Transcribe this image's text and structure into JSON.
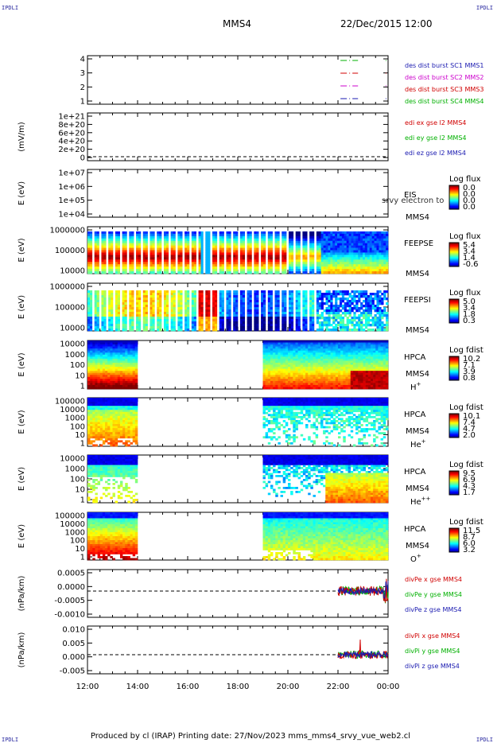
{
  "corner_label": "IPDLI",
  "title_left": "MMS4",
  "title_right": "22/Dec/2015 12:00",
  "footer": "Produced by cl (IRAP)   Printing date: 27/Nov/2023   mms_mms4_srvy_vue_web2.cl",
  "x_ticks": [
    "12:00",
    "14:00",
    "16:00",
    "18:00",
    "20:00",
    "22:00",
    "00:00"
  ],
  "panels": {
    "p1": {
      "ylabel": "",
      "yticks": [
        "4",
        "3",
        "2",
        "1"
      ],
      "legend": [
        {
          "text": "des dist burst SC1 MMS1",
          "color": "#1a1ab0"
        },
        {
          "text": "des dist burst SC2 MMS2",
          "color": "#cc00cc"
        },
        {
          "text": "des dist burst SC3 MMS3",
          "color": "#d00000"
        },
        {
          "text": "des dist burst SC4 MMS4",
          "color": "#00b000"
        }
      ]
    },
    "p2": {
      "ylabel": "(mV/m)",
      "yticks": [
        "1e+21",
        "8e+20",
        "6e+20",
        "4e+20",
        "2e+20",
        "0"
      ],
      "legend": [
        {
          "text": "edi ex gse l2 MMS4",
          "color": "#d00000"
        },
        {
          "text": "edi ey gse l2 MMS4",
          "color": "#00b000"
        },
        {
          "text": "edi ez gse l2 MMS4",
          "color": "#1a1ab0"
        }
      ]
    },
    "p3": {
      "ylabel": "E (eV)",
      "yticks": [
        "1e+07",
        "1e+06",
        "1e+05",
        "1e+04"
      ],
      "label1": "EIS",
      "label2": "MMS4",
      "overlay": "srvy electron to",
      "cb_title": "Log flux",
      "cb_ticks": [
        "0.0",
        "0.0",
        "0.0",
        "0.0"
      ]
    },
    "p4": {
      "ylabel": "E (eV)",
      "yticks": [
        "1000000",
        "100000",
        "10000"
      ],
      "label1": "FEEPSE",
      "label2": "MMS4",
      "cb_title": "Log flux",
      "cb_ticks": [
        "5.4",
        "3.4",
        "1.4",
        "-0.6"
      ]
    },
    "p5": {
      "ylabel": "E (eV)",
      "yticks": [
        "1000000",
        "100000",
        "10000"
      ],
      "label1": "FEEPSI",
      "label2": "MMS4",
      "cb_title": "Log flux",
      "cb_ticks": [
        "5.0",
        "3.4",
        "1.8",
        "0.3"
      ]
    },
    "p6": {
      "ylabel": "E (eV)",
      "yticks": [
        "10000",
        "1000",
        "100",
        "10",
        "1"
      ],
      "label1": "HPCA",
      "label2": "MMS4",
      "species": "H",
      "species_sup": "+",
      "cb_title": "Log fdist",
      "cb_ticks": [
        "10.2",
        "7.1",
        "3.9",
        "0.8"
      ]
    },
    "p7": {
      "ylabel": "E (eV)",
      "yticks": [
        "100000",
        "10000",
        "1000",
        "100",
        "10",
        "1"
      ],
      "label1": "HPCA",
      "label2": "MMS4",
      "species": "He",
      "species_sup": "+",
      "cb_title": "Log fdist",
      "cb_ticks": [
        "10.1",
        "7.4",
        "4.7",
        "2.0"
      ]
    },
    "p8": {
      "ylabel": "E (eV)",
      "yticks": [
        "10000",
        "1000",
        "100",
        "10",
        "1"
      ],
      "label1": "HPCA",
      "label2": "MMS4",
      "species": "He",
      "species_sup": "++",
      "cb_title": "Log fdist",
      "cb_ticks": [
        "9.5",
        "6.9",
        "4.3",
        "1.7"
      ]
    },
    "p9": {
      "ylabel": "E (eV)",
      "yticks": [
        "100000",
        "10000",
        "1000",
        "100",
        "10",
        "1"
      ],
      "label1": "HPCA",
      "label2": "MMS4",
      "species": "O",
      "species_sup": "+",
      "cb_title": "Log fdist",
      "cb_ticks": [
        "11.5",
        "8.7",
        "6.0",
        "3.2"
      ]
    },
    "p10": {
      "ylabel": "(nPa/km)",
      "yticks": [
        "0.0005",
        "0.0000",
        "-0.0005",
        "-0.0010"
      ],
      "legend": [
        {
          "text": "divPe x gse MMS4",
          "color": "#d00000"
        },
        {
          "text": "divPe y gse MMS4",
          "color": "#00b000"
        },
        {
          "text": "divPe z gse MMS4",
          "color": "#1a1ab0"
        }
      ]
    },
    "p11": {
      "ylabel": "(nPa/km)",
      "yticks": [
        "0.010",
        "0.005",
        "0.000",
        "-0.005"
      ],
      "legend": [
        {
          "text": "divPi x gse MMS4",
          "color": "#d00000"
        },
        {
          "text": "divPi y gse MMS4",
          "color": "#00b000"
        },
        {
          "text": "divPi z gse MMS4",
          "color": "#1a1ab0"
        }
      ]
    }
  },
  "chart_data": [
    {
      "panel": "p1",
      "type": "line",
      "x_range": [
        "12:00",
        "00:00"
      ],
      "ylim": [
        0.5,
        4.5
      ],
      "series": [
        {
          "name": "des dist burst SC1 MMS1",
          "y": 1
        },
        {
          "name": "des dist burst SC2 MMS2",
          "y": 2
        },
        {
          "name": "des dist burst SC3 MMS3",
          "y": 3
        },
        {
          "name": "des dist burst SC4 MMS4",
          "y": 4
        }
      ]
    },
    {
      "panel": "p2",
      "type": "line",
      "ylim": [
        0,
        1e+21
      ],
      "note": "flat at 0"
    },
    {
      "panel": "p3",
      "type": "heatmap",
      "yscale": "log",
      "ylim": [
        10000.0,
        10000000.0
      ],
      "empty": true
    },
    {
      "panel": "p4",
      "type": "heatmap",
      "yscale": "log",
      "ylim": [
        10000.0,
        1000000.0
      ],
      "colorbar": [
        -0.6,
        5.4
      ]
    },
    {
      "panel": "p5",
      "type": "heatmap",
      "yscale": "log",
      "ylim": [
        10000.0,
        1000000.0
      ],
      "colorbar": [
        0.3,
        5.0
      ]
    },
    {
      "panel": "p6",
      "type": "heatmap",
      "yscale": "log",
      "ylim": [
        1,
        30000.0
      ],
      "colorbar": [
        0.8,
        10.2
      ],
      "data_gaps": [
        [
          "14:00",
          "19:00"
        ]
      ]
    },
    {
      "panel": "p7",
      "type": "heatmap",
      "yscale": "log",
      "ylim": [
        1,
        100000.0
      ],
      "colorbar": [
        2.0,
        10.1
      ],
      "data_gaps": [
        [
          "14:00",
          "19:00"
        ]
      ]
    },
    {
      "panel": "p8",
      "type": "heatmap",
      "yscale": "log",
      "ylim": [
        1,
        30000.0
      ],
      "colorbar": [
        1.7,
        9.5
      ],
      "data_gaps": [
        [
          "14:00",
          "19:00"
        ]
      ]
    },
    {
      "panel": "p9",
      "type": "heatmap",
      "yscale": "log",
      "ylim": [
        1,
        100000.0
      ],
      "colorbar": [
        3.2,
        11.5
      ],
      "data_gaps": [
        [
          "14:00",
          "19:00"
        ]
      ]
    },
    {
      "panel": "p10",
      "type": "line",
      "ylim": [
        -0.0011,
        0.0009
      ],
      "data_span": [
        "22:00",
        "00:00"
      ]
    },
    {
      "panel": "p11",
      "type": "line",
      "ylim": [
        -0.0075,
        0.0105
      ],
      "data_span": [
        "22:00",
        "00:00"
      ]
    }
  ]
}
